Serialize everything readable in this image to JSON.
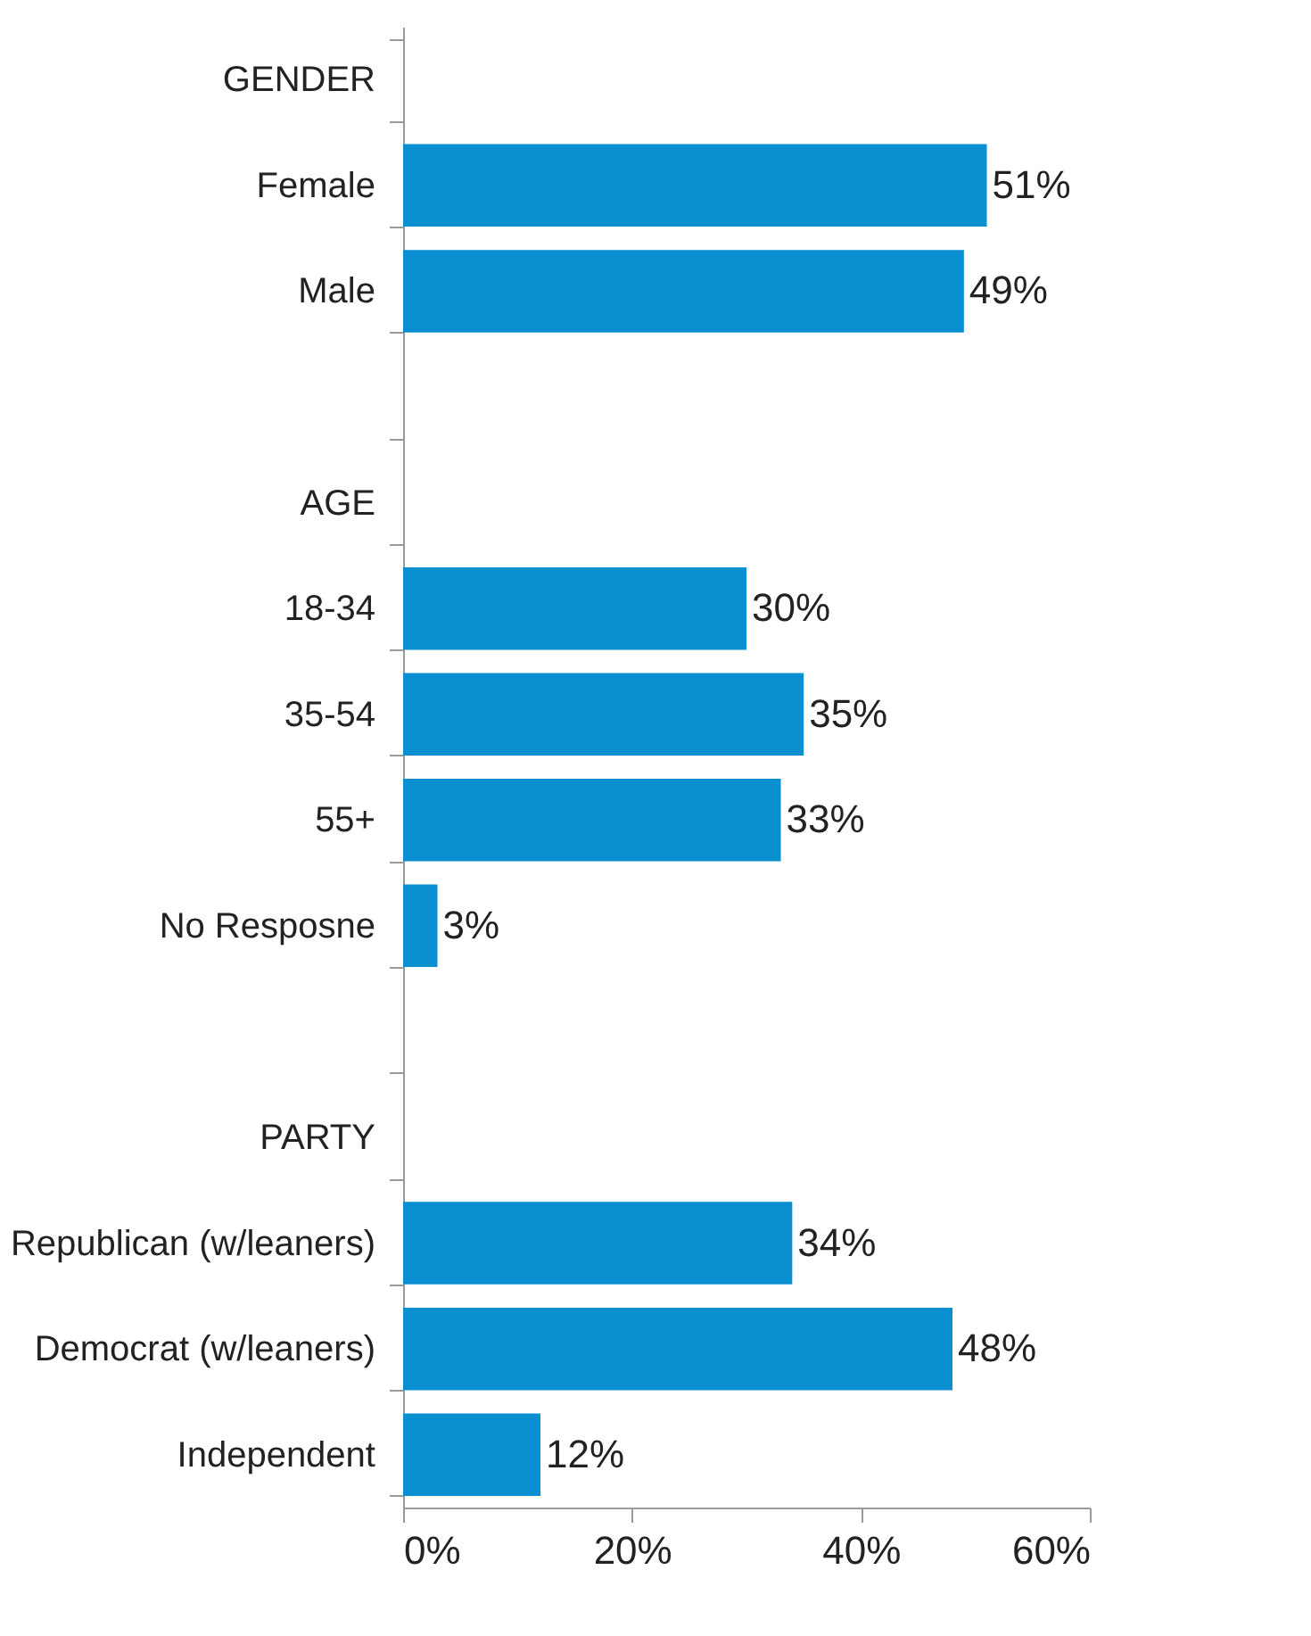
{
  "chart_data": {
    "type": "bar",
    "orientation": "horizontal",
    "categories": [
      "GENDER",
      "Female",
      "Male",
      null,
      "AGE",
      "18-34",
      "35-54",
      "55+",
      "No Resposne",
      null,
      "PARTY",
      "Republican (w/leaners)",
      "Democrat (w/leaners)",
      "Independent"
    ],
    "values": [
      null,
      51,
      49,
      null,
      null,
      30,
      35,
      33,
      3,
      null,
      null,
      34,
      48,
      12
    ],
    "value_labels": [
      null,
      "51%",
      "49%",
      null,
      null,
      "30%",
      "35%",
      "33%",
      "3%",
      null,
      null,
      "34%",
      "48%",
      "12%"
    ],
    "color": "#0a8fd0",
    "xlim": [
      0,
      60
    ],
    "xticks": [
      {
        "value": 0,
        "label": "0%"
      },
      {
        "value": 20,
        "label": "20%"
      },
      {
        "value": 40,
        "label": "40%"
      },
      {
        "value": 60,
        "label": "60%"
      }
    ],
    "grid": false
  }
}
